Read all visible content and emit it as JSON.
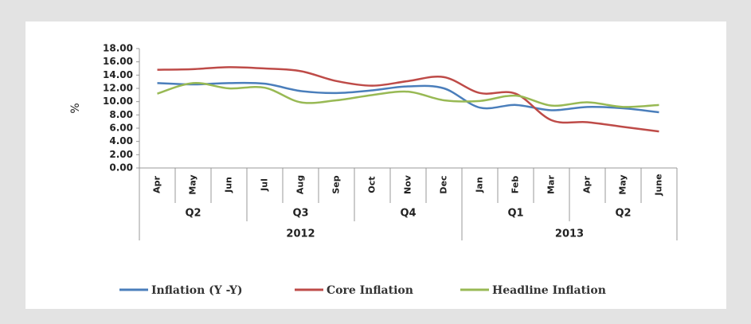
{
  "chart_data": {
    "type": "line",
    "y_label": "%",
    "categories": [
      "Apr",
      "May",
      "Jun",
      "Jul",
      "Aug",
      "Sep",
      "Oct",
      "Nov",
      "Dec",
      "Jan",
      "Feb",
      "Mar",
      "Apr",
      "May",
      "June"
    ],
    "quarters": [
      {
        "label": "Q2",
        "span": 3
      },
      {
        "label": "Q3",
        "span": 3
      },
      {
        "label": "Q4",
        "span": 3
      },
      {
        "label": "Q1",
        "span": 3
      },
      {
        "label": "Q2",
        "span": 3
      }
    ],
    "years": [
      {
        "label": "2012",
        "span": 9
      },
      {
        "label": "2013",
        "span": 6
      }
    ],
    "series": [
      {
        "name": "Inflation (Y -Y)",
        "color": "#4a7ebb",
        "values": [
          12.8,
          12.6,
          12.8,
          12.7,
          11.6,
          11.3,
          11.7,
          12.3,
          12.0,
          9.1,
          9.5,
          8.7,
          9.2,
          9.0,
          8.4
        ]
      },
      {
        "name": "Core Inflation",
        "color": "#be4b48",
        "values": [
          14.8,
          14.9,
          15.2,
          15.0,
          14.6,
          13.1,
          12.4,
          13.1,
          13.7,
          11.3,
          11.2,
          7.2,
          6.9,
          6.2,
          5.5
        ]
      },
      {
        "name": "Headline Inflation",
        "color": "#98b954",
        "values": [
          11.2,
          12.8,
          12.0,
          12.1,
          9.9,
          10.2,
          11.0,
          11.5,
          10.2,
          10.1,
          10.9,
          9.4,
          9.9,
          9.2,
          9.5
        ]
      }
    ],
    "ylim": [
      0,
      18
    ],
    "yticks": [
      {
        "value": 0,
        "label": "0.00"
      },
      {
        "value": 2,
        "label": "2.00"
      },
      {
        "value": 4,
        "label": "4.00"
      },
      {
        "value": 6,
        "label": "6.00"
      },
      {
        "value": 8,
        "label": "8.00"
      },
      {
        "value": 10,
        "label": "10.00"
      },
      {
        "value": 12,
        "label": "12.00"
      },
      {
        "value": 14,
        "label": "14.00"
      },
      {
        "value": 16,
        "label": "16.00"
      },
      {
        "value": 18,
        "label": "18.00"
      }
    ],
    "grid": false,
    "smooth": true,
    "legend": "bottom"
  }
}
